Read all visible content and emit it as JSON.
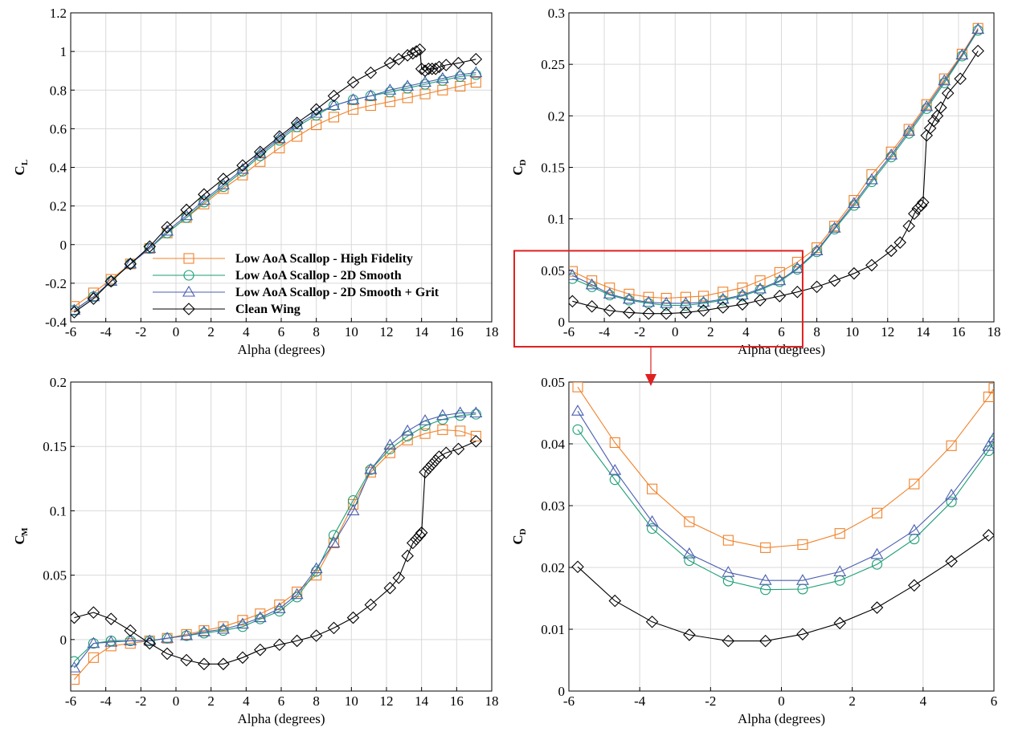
{
  "chart_data": [
    {
      "type": "line",
      "xlabel": "Alpha (degrees)",
      "ylabel": "C",
      "ylabel_sub": "L",
      "xlim": [
        -6,
        18
      ],
      "ylim": [
        -0.4,
        1.2
      ],
      "xticks": [
        -6,
        -4,
        -2,
        0,
        2,
        4,
        6,
        8,
        10,
        12,
        14,
        16,
        18
      ],
      "yticks": [
        -0.4,
        -0.2,
        0,
        0.2,
        0.4,
        0.6,
        0.8,
        1,
        1.2
      ],
      "ytick_labels": [
        "-0.4",
        "-0.2",
        "0",
        "0.2",
        "0.4",
        "0.6",
        "0.8",
        "1",
        "1.2"
      ],
      "grid": true,
      "legend": "bottom-center",
      "series": [
        {
          "name": "Low AoA Scallop - High Fidelity",
          "color": "#f0822a",
          "marker": "square",
          "x": [
            -5.8,
            -4.7,
            -3.7,
            -2.6,
            -1.5,
            -0.5,
            0.6,
            1.6,
            2.7,
            3.8,
            4.8,
            5.9,
            6.9,
            8.0,
            9.0,
            10.1,
            11.1,
            12.2,
            13.2,
            14.2,
            15.2,
            16.2,
            17.1
          ],
          "y": [
            -0.32,
            -0.25,
            -0.18,
            -0.1,
            -0.02,
            0.06,
            0.14,
            0.21,
            0.29,
            0.36,
            0.43,
            0.5,
            0.56,
            0.62,
            0.66,
            0.7,
            0.72,
            0.74,
            0.76,
            0.78,
            0.8,
            0.82,
            0.84
          ]
        },
        {
          "name": "Low AoA Scallop - 2D Smooth",
          "color": "#1a9e73",
          "marker": "circle",
          "x": [
            -5.8,
            -4.7,
            -3.7,
            -2.6,
            -1.5,
            -0.5,
            0.6,
            1.6,
            2.7,
            3.8,
            4.8,
            5.9,
            6.9,
            8.0,
            9.0,
            10.1,
            11.1,
            12.2,
            13.2,
            14.2,
            15.2,
            16.2,
            17.1
          ],
          "y": [
            -0.34,
            -0.27,
            -0.19,
            -0.1,
            -0.02,
            0.06,
            0.14,
            0.22,
            0.3,
            0.38,
            0.46,
            0.54,
            0.61,
            0.67,
            0.72,
            0.75,
            0.77,
            0.79,
            0.81,
            0.83,
            0.85,
            0.87,
            0.88
          ]
        },
        {
          "name": "Low AoA Scallop - 2D Smooth + Grit",
          "color": "#4a5eb0",
          "marker": "triangle",
          "x": [
            -5.8,
            -4.7,
            -3.7,
            -2.6,
            -1.5,
            -0.5,
            0.6,
            1.6,
            2.7,
            3.8,
            4.8,
            5.9,
            6.9,
            8.0,
            9.0,
            10.1,
            11.1,
            12.2,
            13.2,
            14.2,
            15.2,
            16.2,
            17.1
          ],
          "y": [
            -0.34,
            -0.27,
            -0.19,
            -0.1,
            -0.02,
            0.07,
            0.15,
            0.23,
            0.31,
            0.39,
            0.47,
            0.55,
            0.62,
            0.68,
            0.72,
            0.75,
            0.77,
            0.8,
            0.82,
            0.84,
            0.86,
            0.88,
            0.89
          ]
        },
        {
          "name": "Clean Wing",
          "color": "#000000",
          "marker": "diamond",
          "x": [
            -5.8,
            -4.7,
            -3.7,
            -2.6,
            -1.5,
            -0.5,
            0.6,
            1.6,
            2.7,
            3.8,
            4.8,
            5.9,
            6.9,
            8.0,
            9.0,
            10.1,
            11.1,
            12.2,
            12.7,
            13.2,
            13.5,
            13.7,
            13.9,
            14.0,
            14.2,
            14.4,
            14.6,
            14.8,
            15.0,
            15.4,
            16.1,
            17.1
          ],
          "y": [
            -0.35,
            -0.28,
            -0.19,
            -0.1,
            -0.01,
            0.09,
            0.18,
            0.26,
            0.34,
            0.41,
            0.48,
            0.56,
            0.63,
            0.7,
            0.77,
            0.84,
            0.89,
            0.94,
            0.96,
            0.98,
            0.99,
            1.0,
            1.01,
            0.91,
            0.9,
            0.91,
            0.91,
            0.91,
            0.92,
            0.93,
            0.94,
            0.96
          ]
        }
      ]
    },
    {
      "type": "line",
      "xlabel": "Alpha (degrees)",
      "ylabel": "C",
      "ylabel_sub": "D",
      "xlim": [
        -6,
        18
      ],
      "ylim": [
        0,
        0.3
      ],
      "xticks": [
        -6,
        -4,
        -2,
        0,
        2,
        4,
        6,
        8,
        10,
        12,
        14,
        16,
        18
      ],
      "yticks": [
        0,
        0.05,
        0.1,
        0.15,
        0.2,
        0.25,
        0.3
      ],
      "ytick_labels": [
        "0",
        "0.05",
        "0.1",
        "0.15",
        "0.2",
        "0.25",
        "0.3"
      ],
      "grid": true,
      "highlight_box": {
        "x": [
          -6,
          7.2
        ],
        "y": [
          -0.005,
          0.069
        ],
        "color": "#e02020"
      },
      "series": [
        {
          "name": "Low AoA Scallop - High Fidelity",
          "color": "#f0822a",
          "marker": "square",
          "x": [
            -5.8,
            -4.7,
            -3.7,
            -2.6,
            -1.5,
            -0.5,
            0.6,
            1.6,
            2.7,
            3.8,
            4.8,
            5.9,
            6.9,
            8.0,
            9.0,
            10.1,
            11.1,
            12.2,
            13.2,
            14.2,
            15.2,
            16.2,
            17.1
          ],
          "y": [
            0.049,
            0.04,
            0.033,
            0.027,
            0.024,
            0.023,
            0.024,
            0.025,
            0.029,
            0.033,
            0.04,
            0.048,
            0.058,
            0.072,
            0.093,
            0.118,
            0.143,
            0.165,
            0.187,
            0.211,
            0.236,
            0.26,
            0.285
          ]
        },
        {
          "name": "Low AoA Scallop - 2D Smooth",
          "color": "#1a9e73",
          "marker": "circle",
          "x": [
            -5.8,
            -4.7,
            -3.7,
            -2.6,
            -1.5,
            -0.5,
            0.6,
            1.6,
            2.7,
            3.8,
            4.8,
            5.9,
            6.9,
            8.0,
            9.0,
            10.1,
            11.1,
            12.2,
            13.2,
            14.2,
            15.2,
            16.2,
            17.1
          ],
          "y": [
            0.042,
            0.034,
            0.026,
            0.021,
            0.018,
            0.016,
            0.016,
            0.018,
            0.021,
            0.025,
            0.031,
            0.039,
            0.051,
            0.068,
            0.09,
            0.113,
            0.136,
            0.16,
            0.183,
            0.207,
            0.232,
            0.258,
            0.283
          ]
        },
        {
          "name": "Low AoA Scallop - 2D Smooth + Grit",
          "color": "#4a5eb0",
          "marker": "triangle",
          "x": [
            -5.8,
            -4.7,
            -3.7,
            -2.6,
            -1.5,
            -0.5,
            0.6,
            1.6,
            2.7,
            3.8,
            4.8,
            5.9,
            6.9,
            8.0,
            9.0,
            10.1,
            11.1,
            12.2,
            13.2,
            14.2,
            15.2,
            16.2,
            17.1
          ],
          "y": [
            0.045,
            0.036,
            0.027,
            0.022,
            0.019,
            0.018,
            0.018,
            0.019,
            0.022,
            0.026,
            0.032,
            0.04,
            0.052,
            0.069,
            0.091,
            0.115,
            0.138,
            0.162,
            0.185,
            0.209,
            0.234,
            0.259,
            0.284
          ]
        },
        {
          "name": "Clean Wing",
          "color": "#000000",
          "marker": "diamond",
          "x": [
            -5.8,
            -4.7,
            -3.7,
            -2.6,
            -1.5,
            -0.5,
            0.6,
            1.6,
            2.7,
            3.8,
            4.8,
            5.9,
            6.9,
            8.0,
            9.0,
            10.1,
            11.1,
            12.2,
            12.7,
            13.2,
            13.5,
            13.7,
            13.9,
            14.0,
            14.2,
            14.4,
            14.6,
            14.8,
            15.0,
            15.4,
            16.1,
            17.1
          ],
          "y": [
            0.02,
            0.015,
            0.011,
            0.009,
            0.008,
            0.008,
            0.009,
            0.011,
            0.014,
            0.017,
            0.021,
            0.025,
            0.029,
            0.034,
            0.04,
            0.047,
            0.055,
            0.069,
            0.077,
            0.093,
            0.105,
            0.11,
            0.113,
            0.116,
            0.181,
            0.188,
            0.195,
            0.2,
            0.208,
            0.222,
            0.236,
            0.263
          ]
        }
      ]
    },
    {
      "type": "line",
      "xlabel": "Alpha (degrees)",
      "ylabel": "C",
      "ylabel_sub": "M",
      "xlim": [
        -6,
        18
      ],
      "ylim": [
        -0.04,
        0.2
      ],
      "xticks": [
        -6,
        -4,
        -2,
        0,
        2,
        4,
        6,
        8,
        10,
        12,
        14,
        16,
        18
      ],
      "yticks": [
        0,
        0.05,
        0.1,
        0.15,
        0.2
      ],
      "ytick_labels": [
        "0",
        "0.05",
        "0.1",
        "0.15",
        "0.2"
      ],
      "grid": true,
      "series": [
        {
          "name": "Low AoA Scallop - High Fidelity",
          "color": "#f0822a",
          "marker": "square",
          "x": [
            -5.8,
            -4.7,
            -3.7,
            -2.6,
            -1.5,
            -0.5,
            0.6,
            1.6,
            2.7,
            3.8,
            4.8,
            5.9,
            6.9,
            8.0,
            9.0,
            10.1,
            11.1,
            12.2,
            13.2,
            14.2,
            15.2,
            16.2,
            17.1
          ],
          "y": [
            -0.031,
            -0.014,
            -0.005,
            -0.003,
            -0.001,
            0.001,
            0.004,
            0.007,
            0.01,
            0.015,
            0.02,
            0.027,
            0.037,
            0.05,
            0.075,
            0.105,
            0.13,
            0.145,
            0.155,
            0.16,
            0.163,
            0.162,
            0.158
          ]
        },
        {
          "name": "Low AoA Scallop - 2D Smooth",
          "color": "#1a9e73",
          "marker": "circle",
          "x": [
            -5.8,
            -4.7,
            -3.7,
            -2.6,
            -1.5,
            -0.5,
            0.6,
            1.6,
            2.7,
            3.8,
            4.8,
            5.9,
            6.9,
            8.0,
            9.0,
            10.1,
            11.1,
            12.2,
            13.2,
            14.2,
            15.2,
            16.2,
            17.1
          ],
          "y": [
            -0.017,
            -0.003,
            -0.001,
            -0.001,
            -0.001,
            0.001,
            0.003,
            0.005,
            0.007,
            0.01,
            0.016,
            0.022,
            0.033,
            0.053,
            0.081,
            0.108,
            0.132,
            0.148,
            0.158,
            0.166,
            0.171,
            0.174,
            0.175
          ]
        },
        {
          "name": "Low AoA Scallop - 2D Smooth + Grit",
          "color": "#4a5eb0",
          "marker": "triangle",
          "x": [
            -5.8,
            -4.7,
            -3.7,
            -2.6,
            -1.5,
            -0.5,
            0.6,
            1.6,
            2.7,
            3.8,
            4.8,
            5.9,
            6.9,
            8.0,
            9.0,
            10.1,
            11.1,
            12.2,
            13.2,
            14.2,
            15.2,
            16.2,
            17.1
          ],
          "y": [
            -0.022,
            -0.003,
            -0.002,
            -0.001,
            -0.001,
            0.001,
            0.003,
            0.006,
            0.008,
            0.012,
            0.017,
            0.024,
            0.035,
            0.055,
            0.075,
            0.1,
            0.132,
            0.151,
            0.162,
            0.17,
            0.174,
            0.176,
            0.176
          ]
        },
        {
          "name": "Clean Wing",
          "color": "#000000",
          "marker": "diamond",
          "x": [
            -5.8,
            -4.7,
            -3.7,
            -2.6,
            -1.5,
            -0.5,
            0.6,
            1.6,
            2.7,
            3.8,
            4.8,
            5.9,
            6.9,
            8.0,
            9.0,
            10.1,
            11.1,
            12.2,
            12.7,
            13.2,
            13.5,
            13.7,
            13.9,
            14.0,
            14.2,
            14.4,
            14.6,
            14.8,
            15.0,
            15.4,
            16.1,
            17.1
          ],
          "y": [
            0.017,
            0.021,
            0.016,
            0.007,
            -0.003,
            -0.011,
            -0.016,
            -0.019,
            -0.019,
            -0.014,
            -0.008,
            -0.004,
            -0.001,
            0.003,
            0.009,
            0.017,
            0.027,
            0.04,
            0.048,
            0.065,
            0.075,
            0.078,
            0.081,
            0.083,
            0.13,
            0.133,
            0.136,
            0.139,
            0.142,
            0.145,
            0.148,
            0.154
          ]
        }
      ]
    },
    {
      "type": "line",
      "xlabel": "Alpha (degrees)",
      "ylabel": "C",
      "ylabel_sub": "D",
      "xlim": [
        -6,
        6
      ],
      "ylim": [
        0,
        0.05
      ],
      "xticks": [
        -6,
        -4,
        -2,
        0,
        2,
        4,
        6
      ],
      "yticks": [
        0,
        0.01,
        0.02,
        0.03,
        0.04,
        0.05
      ],
      "ytick_labels": [
        "0",
        "0.01",
        "0.02",
        "0.03",
        "0.04",
        "0.05"
      ],
      "grid": true,
      "series": [
        {
          "name": "Low AoA Scallop - High Fidelity",
          "color": "#f0822a",
          "marker": "square",
          "x": [
            -5.75,
            -4.7,
            -3.65,
            -2.6,
            -1.5,
            -0.45,
            0.6,
            1.65,
            2.7,
            3.75,
            4.8,
            5.85,
            6
          ],
          "y": [
            0.0492,
            0.0402,
            0.0327,
            0.0274,
            0.0244,
            0.0232,
            0.0237,
            0.0255,
            0.0288,
            0.0335,
            0.0397,
            0.0476,
            0.049
          ]
        },
        {
          "name": "Low AoA Scallop - 2D Smooth",
          "color": "#1a9e73",
          "marker": "circle",
          "x": [
            -5.75,
            -4.7,
            -3.65,
            -2.6,
            -1.5,
            -0.45,
            0.6,
            1.65,
            2.7,
            3.75,
            4.8,
            5.85,
            6
          ],
          "y": [
            0.0423,
            0.0342,
            0.0263,
            0.0211,
            0.0178,
            0.0164,
            0.0165,
            0.0179,
            0.0205,
            0.0246,
            0.0306,
            0.0389,
            0.0405
          ]
        },
        {
          "name": "Low AoA Scallop - 2D Smooth + Grit",
          "color": "#4a5eb0",
          "marker": "triangle",
          "x": [
            -5.75,
            -4.7,
            -3.65,
            -2.6,
            -1.5,
            -0.45,
            0.6,
            1.65,
            2.7,
            3.75,
            4.8,
            5.85,
            6
          ],
          "y": [
            0.0453,
            0.0357,
            0.0274,
            0.0222,
            0.0192,
            0.0179,
            0.0179,
            0.0193,
            0.0221,
            0.026,
            0.0317,
            0.0396,
            0.041
          ]
        },
        {
          "name": "Clean Wing",
          "color": "#000000",
          "marker": "diamond",
          "x": [
            -5.75,
            -4.7,
            -3.65,
            -2.6,
            -1.5,
            -0.45,
            0.6,
            1.65,
            2.7,
            3.75,
            4.8,
            5.85
          ],
          "y": [
            0.0201,
            0.0146,
            0.0112,
            0.0091,
            0.0081,
            0.0081,
            0.0092,
            0.011,
            0.0135,
            0.0171,
            0.021,
            0.0252
          ]
        }
      ]
    }
  ]
}
